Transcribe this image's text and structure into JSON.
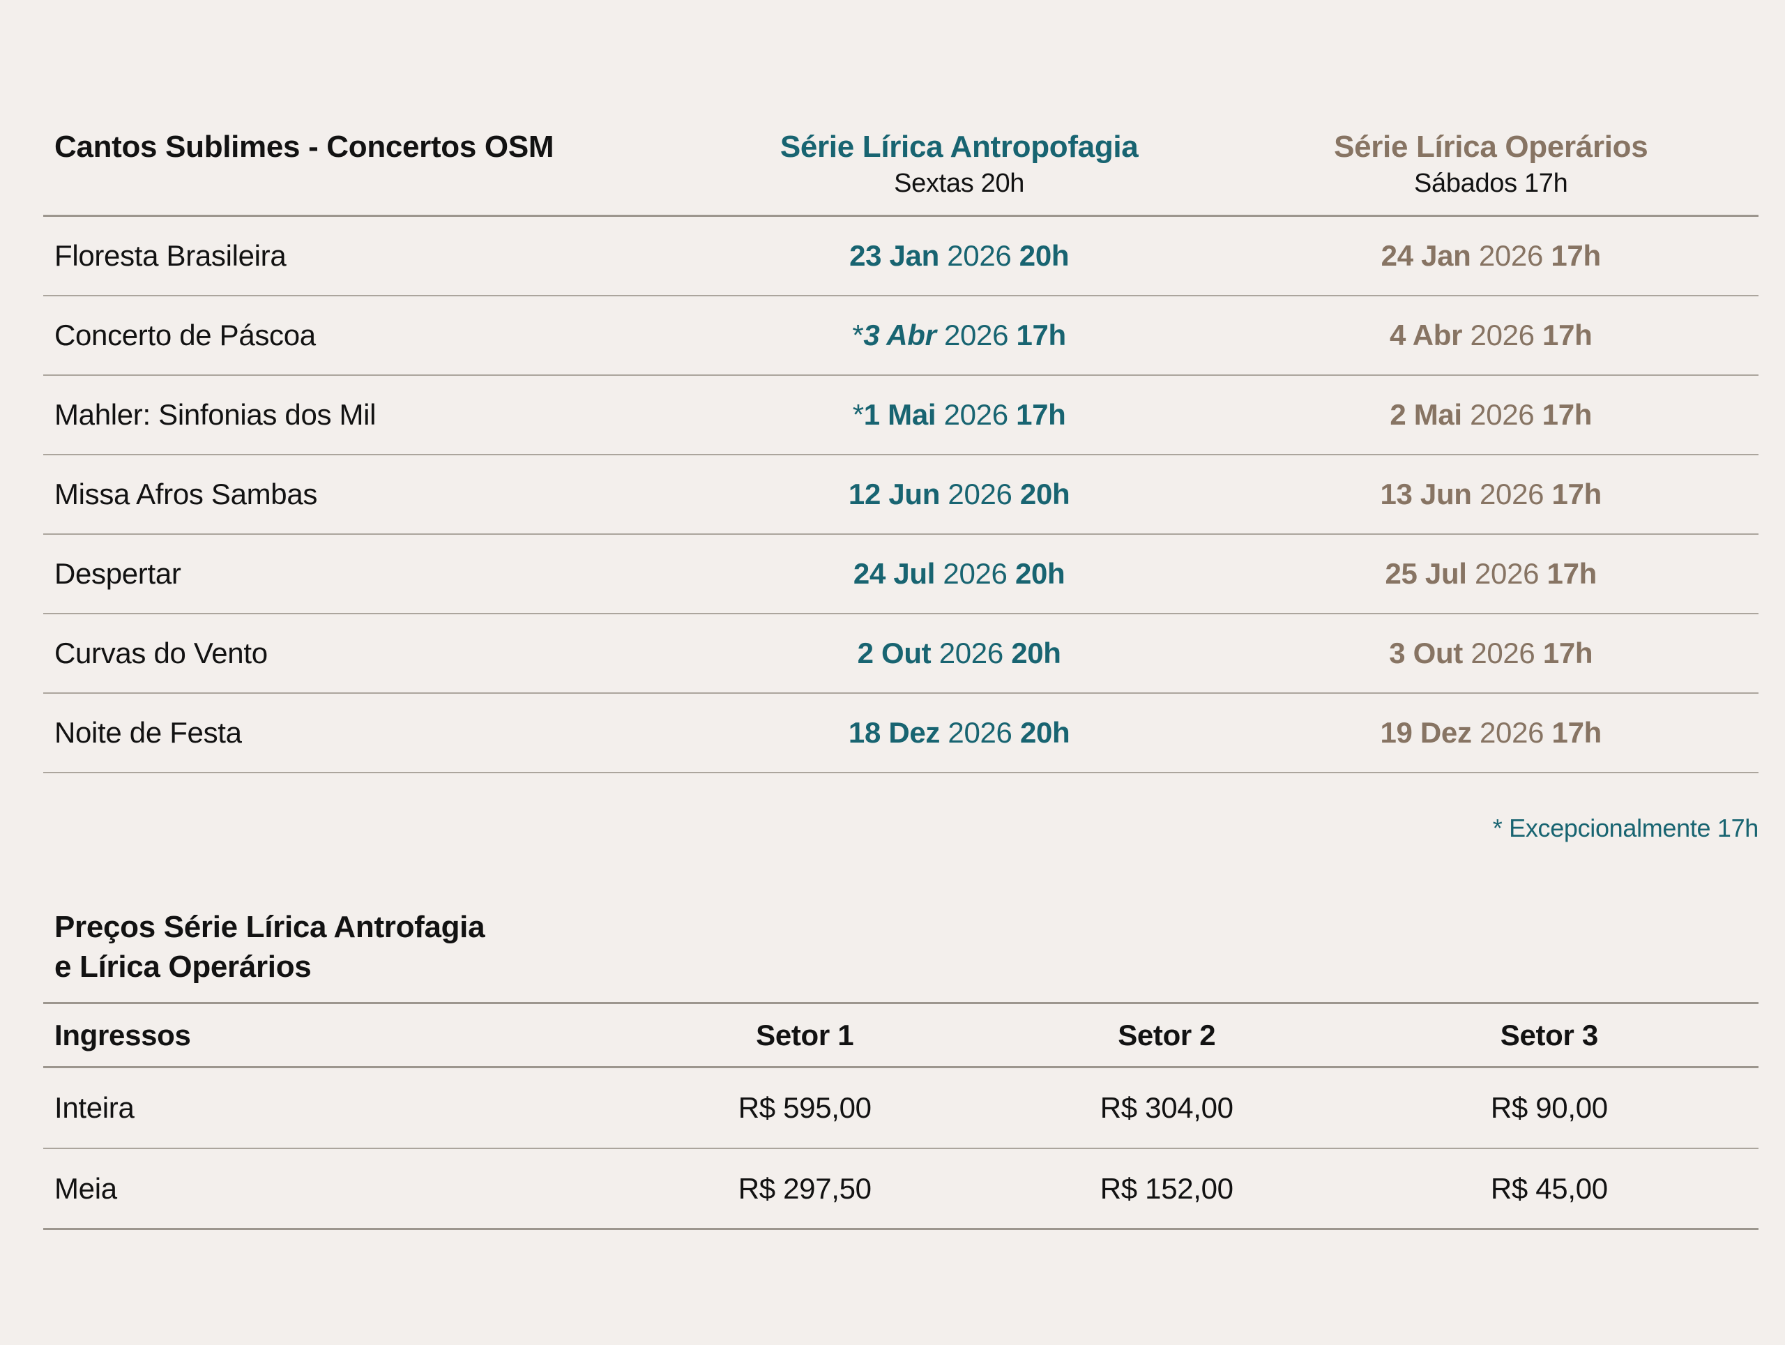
{
  "schedule": {
    "title": "Cantos Sublimes - Concertos OSM",
    "columns": [
      {
        "name": "Série Lírica Antropofagia",
        "subtitle": "Sextas 20h",
        "color": "#186471"
      },
      {
        "name": "Série Lírica Operários",
        "subtitle": "Sábados 17h",
        "color": "#877463"
      }
    ],
    "rows": [
      {
        "program": "Floresta Brasileira",
        "a": {
          "star": "",
          "day": "23 Jan",
          "year": "2026",
          "time": "20h"
        },
        "b": {
          "day": "24 Jan",
          "year": "2026",
          "time": "17h"
        }
      },
      {
        "program": "Concerto de Páscoa",
        "a": {
          "star": "*",
          "day": "3 Abr",
          "year": "2026",
          "time": "17h"
        },
        "b": {
          "day": "4 Abr",
          "year": "2026",
          "time": "17h"
        }
      },
      {
        "program": "Mahler: Sinfonias dos Mil",
        "a": {
          "star": "*",
          "day": "1 Mai",
          "year": "2026",
          "time": "17h"
        },
        "b": {
          "day": "2 Mai",
          "year": "2026",
          "time": "17h"
        }
      },
      {
        "program": "Missa Afros Sambas",
        "a": {
          "star": "",
          "day": "12 Jun",
          "year": "2026",
          "time": "20h"
        },
        "b": {
          "day": "13 Jun",
          "year": "2026",
          "time": "17h"
        }
      },
      {
        "program": "Despertar",
        "a": {
          "star": "",
          "day": "24 Jul",
          "year": "2026",
          "time": "20h"
        },
        "b": {
          "day": "25 Jul",
          "year": "2026",
          "time": "17h"
        }
      },
      {
        "program": "Curvas do Vento",
        "a": {
          "star": "",
          "day": "2 Out",
          "year": "2026",
          "time": "20h"
        },
        "b": {
          "day": "3 Out",
          "year": "2026",
          "time": "17h"
        }
      },
      {
        "program": "Noite de Festa",
        "a": {
          "star": "",
          "day": "18 Dez",
          "year": "2026",
          "time": "20h"
        },
        "b": {
          "day": "19 Dez",
          "year": "2026",
          "time": "17h"
        }
      }
    ],
    "footnote": "* Excepcionalmente 17h"
  },
  "prices": {
    "title_line1": "Preços Série Lírica Antrofagia",
    "title_line2": "e Lírica Operários",
    "header": {
      "label": "Ingressos",
      "sectors": [
        "Setor 1",
        "Setor 2",
        "Setor 3"
      ]
    },
    "rows": [
      {
        "label": "Inteira",
        "values": [
          "R$ 595,00",
          "R$ 304,00",
          "R$ 90,00"
        ]
      },
      {
        "label": "Meia",
        "values": [
          "R$ 297,50",
          "R$ 152,00",
          "R$ 45,00"
        ]
      }
    ]
  }
}
